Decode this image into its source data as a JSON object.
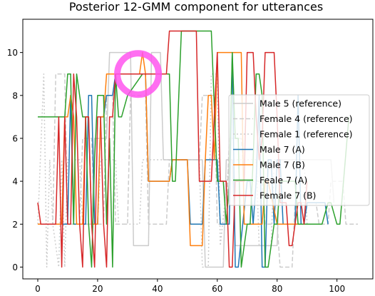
{
  "chart_data": {
    "type": "line",
    "title": "Posterior 12-GMM component for utterances",
    "xlabel": "",
    "ylabel": "",
    "xlim": [
      -5,
      112
    ],
    "ylim": [
      -0.55,
      11.55
    ],
    "xticks": [
      0,
      20,
      40,
      60,
      80,
      100
    ],
    "yticks": [
      0,
      2,
      4,
      6,
      8,
      10
    ],
    "grid": false,
    "legend_position": "right",
    "series": [
      {
        "name": "Male 5 (reference)",
        "color": "#cccccc",
        "style": "solid",
        "x": [
          0,
          18,
          19,
          23,
          24,
          31,
          32,
          37,
          38,
          41,
          42,
          55,
          56,
          62,
          63,
          65,
          66,
          80,
          81,
          98,
          99
        ],
        "y": [
          2,
          2,
          6,
          6,
          10,
          10,
          1,
          1,
          10,
          10,
          5,
          5,
          0,
          0,
          5,
          5,
          1,
          1,
          5,
          5,
          3
        ]
      },
      {
        "name": "Female 4 (reference)",
        "color": "#cccccc",
        "style": "dashed",
        "x": [
          0,
          5,
          6,
          9,
          10,
          14,
          15,
          18,
          19,
          22,
          23,
          25,
          26,
          30,
          31,
          36,
          37,
          43,
          44,
          54,
          55,
          59,
          60,
          63,
          64,
          68,
          69,
          75,
          76,
          80,
          81,
          85,
          86,
          93,
          94,
          97,
          98,
          102,
          103,
          107
        ],
        "y": [
          2,
          2,
          9,
          9,
          2,
          2,
          6,
          6,
          2,
          2,
          8,
          8,
          2,
          2,
          8,
          8,
          2,
          2,
          5,
          5,
          8,
          8,
          2,
          2,
          6,
          6,
          4,
          4,
          2,
          2,
          0,
          0,
          3,
          3,
          2,
          2,
          4,
          4,
          2,
          2
        ]
      },
      {
        "name": "Female 1 (reference)",
        "color": "#cccccc",
        "style": "dotted",
        "x": [
          0,
          2,
          3,
          4,
          5,
          7,
          8,
          9,
          10,
          14,
          15,
          20,
          21,
          26,
          27,
          34,
          35,
          54,
          55,
          57,
          58,
          60,
          61,
          64,
          65,
          73,
          74,
          78,
          79,
          89,
          90
        ],
        "y": [
          2,
          9,
          0,
          5,
          2,
          0,
          5,
          0,
          5,
          5,
          2,
          2,
          5,
          5,
          2,
          2,
          5,
          5,
          0,
          0,
          9,
          9,
          1,
          5,
          5,
          5,
          1,
          1,
          5,
          5,
          2
        ]
      },
      {
        "name": "Male 7 (A)",
        "color": "#1f77b4",
        "style": "solid",
        "x": [
          0,
          10,
          11,
          12,
          13,
          14,
          15,
          16,
          17,
          18,
          19,
          20,
          21,
          22,
          23,
          24,
          25,
          26,
          27,
          36,
          37,
          40,
          41,
          44,
          45,
          46,
          50,
          51,
          52,
          55,
          56,
          60,
          61,
          64,
          65,
          66,
          67,
          70,
          71,
          72,
          73,
          74,
          75,
          76,
          77,
          78,
          79,
          80,
          81,
          82,
          83,
          86,
          87,
          88,
          89,
          90,
          91,
          92,
          96,
          97
        ],
        "y": [
          2,
          2,
          8,
          2,
          2,
          2,
          2,
          2,
          8,
          8,
          2,
          2,
          7,
          7,
          8,
          8,
          8,
          9,
          9,
          9,
          4,
          4,
          4,
          4,
          5,
          5,
          5,
          2,
          2,
          2,
          5,
          5,
          2,
          2,
          10,
          0,
          0,
          4,
          4,
          2,
          4,
          8,
          0,
          0,
          5,
          5,
          2,
          5,
          5,
          2,
          2,
          2,
          8,
          2,
          2,
          3,
          3,
          3,
          3,
          2
        ]
      },
      {
        "name": "Male 7 (B)",
        "color": "#ff7f0e",
        "style": "solid",
        "x": [
          0,
          1,
          4,
          5,
          6,
          8,
          9,
          10,
          11,
          12,
          13,
          14,
          15,
          16,
          17,
          18,
          19,
          20,
          21,
          22,
          23,
          24,
          25,
          34,
          35,
          36,
          37,
          42,
          43,
          44,
          45,
          50,
          51,
          52,
          55,
          56,
          57,
          58,
          59,
          60,
          61,
          62,
          63,
          64,
          65,
          66,
          67,
          68,
          69,
          70,
          71,
          72,
          75,
          76,
          77,
          80,
          81,
          82,
          84,
          85,
          86,
          90,
          91
        ],
        "y": [
          2,
          2,
          2,
          2,
          2,
          2,
          7,
          7,
          8,
          7,
          2,
          2,
          2,
          7,
          7,
          2,
          2,
          2,
          7,
          7,
          9,
          9,
          9,
          9,
          10,
          9,
          4,
          4,
          4,
          4,
          5,
          5,
          1,
          1,
          1,
          5,
          8,
          8,
          5,
          10,
          10,
          10,
          10,
          10,
          10,
          10,
          10,
          10,
          2,
          2,
          2,
          2,
          2,
          4,
          4,
          2,
          2,
          2,
          2,
          2,
          2,
          2,
          2
        ]
      },
      {
        "name": "Feale 7 (A)",
        "color": "#2ca02c",
        "style": "solid",
        "x": [
          0,
          8,
          9,
          10,
          11,
          12,
          13,
          14,
          15,
          16,
          17,
          18,
          19,
          20,
          21,
          22,
          23,
          24,
          25,
          26,
          27,
          28,
          30,
          35,
          44,
          45,
          46,
          48,
          56,
          57,
          58,
          60,
          62,
          63,
          64,
          65,
          66,
          67,
          68,
          70,
          71,
          72,
          73,
          74,
          75,
          76,
          77,
          79,
          80,
          81,
          85,
          86,
          87,
          89,
          92,
          93,
          94,
          95,
          97,
          98,
          100,
          101,
          104
        ],
        "y": [
          7,
          7,
          7,
          9,
          9,
          2,
          9,
          8,
          7,
          7,
          2,
          0,
          5,
          8,
          8,
          8,
          2,
          6,
          0,
          9,
          7,
          7,
          8,
          9,
          9,
          4,
          4,
          11,
          11,
          11,
          11,
          4,
          4,
          2,
          4,
          10,
          6,
          6,
          0,
          2,
          2,
          5,
          9,
          9,
          8,
          0,
          0,
          2,
          2,
          4,
          4,
          4,
          2,
          2,
          2,
          2,
          2,
          2,
          3,
          3,
          2,
          2,
          7
        ]
      },
      {
        "name": "Female 7 (B)",
        "color": "#d62728",
        "style": "solid",
        "x": [
          0,
          1,
          6,
          7,
          8,
          9,
          10,
          11,
          12,
          13,
          14,
          15,
          16,
          17,
          18,
          19,
          20,
          21,
          22,
          23,
          24,
          25,
          26,
          27,
          43,
          44,
          53,
          54,
          57,
          58,
          60,
          61,
          62,
          63,
          64,
          65,
          66,
          67,
          69,
          70,
          72,
          73,
          74,
          75,
          76,
          79,
          80,
          81,
          82,
          83,
          84,
          85,
          87,
          88,
          89,
          90
        ],
        "y": [
          3,
          2,
          2,
          7,
          0,
          7,
          2,
          2,
          9,
          7,
          2,
          0,
          7,
          7,
          2,
          0,
          7,
          7,
          2,
          0,
          7,
          7,
          9,
          9,
          9,
          11,
          11,
          4,
          4,
          4,
          10,
          4,
          4,
          4,
          0,
          0,
          4,
          4,
          4,
          10,
          10,
          7,
          5,
          6,
          10,
          10,
          7,
          3,
          3,
          3,
          1,
          1,
          3,
          3,
          2,
          4
        ]
      }
    ]
  }
}
